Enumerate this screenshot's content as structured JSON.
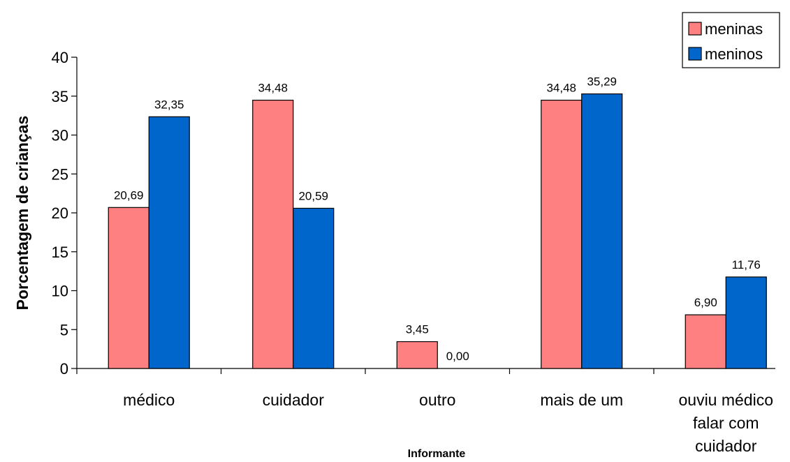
{
  "chart_data": {
    "type": "bar",
    "title": "",
    "xlabel": "Informante",
    "ylabel": "Porcentagem de crianças",
    "ylim": [
      0,
      40
    ],
    "yticks": [
      0,
      5,
      10,
      15,
      20,
      25,
      30,
      35,
      40
    ],
    "grid": false,
    "legend_position": "top-right",
    "categories": [
      [
        "médico"
      ],
      [
        "cuidador"
      ],
      [
        "outro"
      ],
      [
        "mais de um"
      ],
      [
        "ouviu médico",
        "falar com",
        "cuidador"
      ]
    ],
    "series": [
      {
        "name": "meninas",
        "color": "#ff8080",
        "values": [
          20.69,
          34.48,
          3.45,
          34.48,
          6.9
        ],
        "labels": [
          "20,69",
          "34,48",
          "3,45",
          "34,48",
          "6,90"
        ]
      },
      {
        "name": "meninos",
        "color": "#0066cc",
        "values": [
          32.35,
          20.59,
          0.0,
          35.29,
          11.76
        ],
        "labels": [
          "32,35",
          "20,59",
          "0,00",
          "35,29",
          "11,76"
        ]
      }
    ]
  }
}
